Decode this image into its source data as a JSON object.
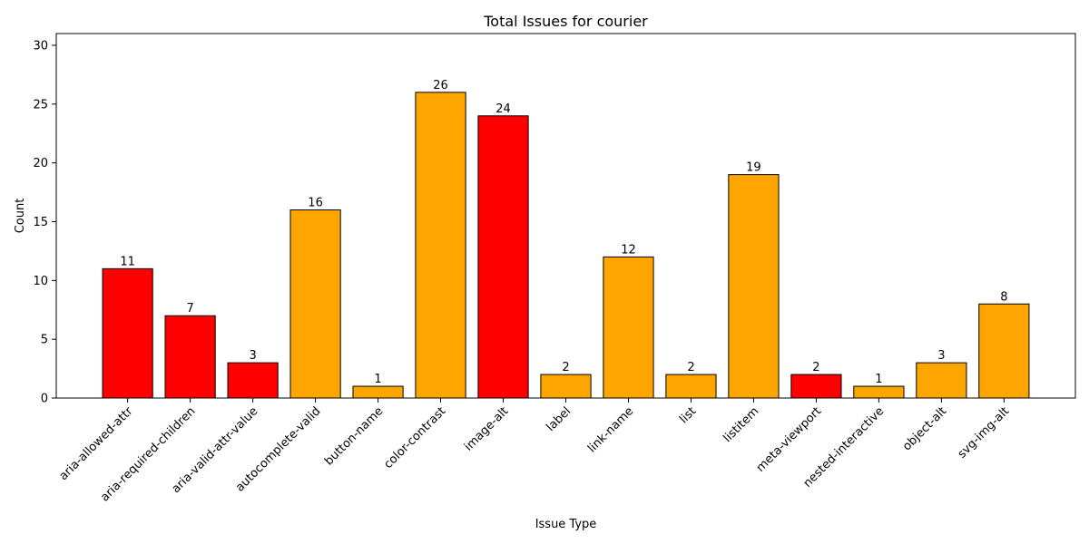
{
  "chart_data": {
    "type": "bar",
    "title": "Total Issues for courier",
    "xlabel": "Issue Type",
    "ylabel": "Count",
    "ylim": [
      0,
      31
    ],
    "yticks": [
      0,
      5,
      10,
      15,
      20,
      25,
      30
    ],
    "grid": false,
    "categories": [
      "aria-allowed-attr",
      "aria-required-children",
      "aria-valid-attr-value",
      "autocomplete-valid",
      "button-name",
      "color-contrast",
      "image-alt",
      "label",
      "link-name",
      "list",
      "listitem",
      "meta-viewport",
      "nested-interactive",
      "object-alt",
      "svg-img-alt"
    ],
    "values": [
      11,
      7,
      3,
      16,
      1,
      26,
      24,
      2,
      12,
      2,
      19,
      2,
      1,
      3,
      8
    ],
    "bar_colors": [
      "#ff0000",
      "#ff0000",
      "#ff0000",
      "#ffa500",
      "#ffa500",
      "#ffa500",
      "#ff0000",
      "#ffa500",
      "#ffa500",
      "#ffa500",
      "#ffa500",
      "#ff0000",
      "#ffa500",
      "#ffa500",
      "#ffa500"
    ],
    "edge_color": "#000000"
  }
}
